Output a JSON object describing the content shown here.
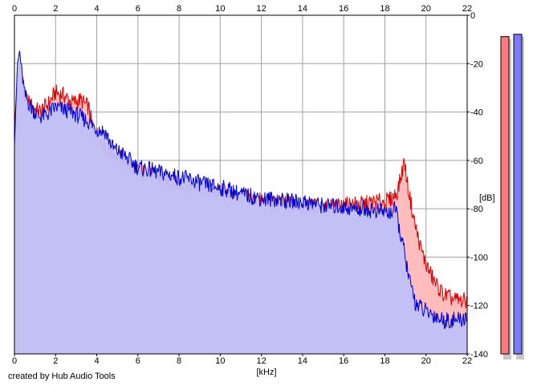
{
  "chart_data": {
    "type": "area",
    "xlabel": "[kHz]",
    "ylabel": "[dB]",
    "xlim": [
      0,
      22
    ],
    "ylim": [
      -140,
      0
    ],
    "x_ticks": [
      "0",
      "2",
      "4",
      "6",
      "8",
      "10",
      "12",
      "14",
      "16",
      "18",
      "20",
      "22"
    ],
    "y_ticks": [
      "0",
      "-20",
      "-40",
      "-60",
      "-80",
      "-100",
      "-120",
      "-140"
    ],
    "grid": true,
    "series": [
      {
        "color": "#e00000",
        "fill": "#ffbcbc",
        "points": [
          [
            0,
            -48
          ],
          [
            0.15,
            -25
          ],
          [
            0.3,
            -20
          ],
          [
            0.5,
            -34
          ],
          [
            0.8,
            -37
          ],
          [
            1.2,
            -40
          ],
          [
            1.6,
            -37
          ],
          [
            2.0,
            -32
          ],
          [
            2.4,
            -33
          ],
          [
            2.8,
            -36
          ],
          [
            3.2,
            -35
          ],
          [
            3.6,
            -38
          ],
          [
            3.8,
            -46
          ],
          [
            4.2,
            -52
          ],
          [
            4.6,
            -56
          ],
          [
            5.0,
            -58
          ],
          [
            5.6,
            -62
          ],
          [
            6.0,
            -64
          ],
          [
            6.6,
            -66
          ],
          [
            7.0,
            -67
          ],
          [
            7.6,
            -69
          ],
          [
            8.0,
            -70
          ],
          [
            8.6,
            -71
          ],
          [
            9.2,
            -72
          ],
          [
            9.8,
            -73
          ],
          [
            10.4,
            -74
          ],
          [
            11.0,
            -75
          ],
          [
            11.6,
            -76
          ],
          [
            12.2,
            -77
          ],
          [
            12.8,
            -78
          ],
          [
            13.4,
            -78
          ],
          [
            14.0,
            -79
          ],
          [
            14.6,
            -79
          ],
          [
            15.2,
            -79
          ],
          [
            15.8,
            -79
          ],
          [
            16.4,
            -78
          ],
          [
            17.0,
            -78
          ],
          [
            17.6,
            -77
          ],
          [
            18.0,
            -77
          ],
          [
            18.3,
            -76
          ],
          [
            18.6,
            -73
          ],
          [
            18.8,
            -66
          ],
          [
            18.95,
            -60
          ],
          [
            19.1,
            -70
          ],
          [
            19.4,
            -84
          ],
          [
            19.7,
            -95
          ],
          [
            20.0,
            -103
          ],
          [
            20.4,
            -110
          ],
          [
            20.8,
            -115
          ],
          [
            21.2,
            -117
          ],
          [
            21.6,
            -118
          ],
          [
            22,
            -118
          ]
        ]
      },
      {
        "color": "#0000d0",
        "fill": "#c0c0f8",
        "points": [
          [
            0,
            -52
          ],
          [
            0.15,
            -20
          ],
          [
            0.25,
            -15
          ],
          [
            0.5,
            -33
          ],
          [
            0.8,
            -38
          ],
          [
            1.2,
            -42
          ],
          [
            1.6,
            -41
          ],
          [
            2.0,
            -38
          ],
          [
            2.4,
            -39
          ],
          [
            2.8,
            -40
          ],
          [
            3.2,
            -42
          ],
          [
            3.6,
            -44
          ],
          [
            4.0,
            -47
          ],
          [
            4.4,
            -48
          ],
          [
            4.8,
            -55
          ],
          [
            5.2,
            -57
          ],
          [
            5.6,
            -60
          ],
          [
            6.0,
            -63
          ],
          [
            6.6,
            -64
          ],
          [
            7.0,
            -65
          ],
          [
            7.6,
            -66
          ],
          [
            8.0,
            -67
          ],
          [
            8.6,
            -68
          ],
          [
            9.2,
            -70
          ],
          [
            9.8,
            -71
          ],
          [
            10.4,
            -72
          ],
          [
            11.0,
            -74
          ],
          [
            11.6,
            -75
          ],
          [
            12.2,
            -76
          ],
          [
            12.8,
            -76
          ],
          [
            13.4,
            -77
          ],
          [
            14.0,
            -77
          ],
          [
            14.6,
            -78
          ],
          [
            15.2,
            -79
          ],
          [
            15.8,
            -79
          ],
          [
            16.4,
            -80
          ],
          [
            17.0,
            -80
          ],
          [
            17.6,
            -81
          ],
          [
            18.0,
            -81
          ],
          [
            18.2,
            -82
          ],
          [
            18.5,
            -80
          ],
          [
            18.7,
            -88
          ],
          [
            18.9,
            -96
          ],
          [
            19.2,
            -110
          ],
          [
            19.5,
            -119
          ],
          [
            19.9,
            -122
          ],
          [
            20.4,
            -124
          ],
          [
            20.8,
            -126
          ],
          [
            21.2,
            -126
          ],
          [
            21.6,
            -126
          ],
          [
            22,
            -125
          ]
        ]
      }
    ],
    "meters": [
      {
        "color": "#ff7a7a",
        "value": -5
      },
      {
        "color": "#7a7aff",
        "value": -4
      }
    ]
  },
  "footer": {
    "credit": "created by Hub Audio Tools"
  }
}
